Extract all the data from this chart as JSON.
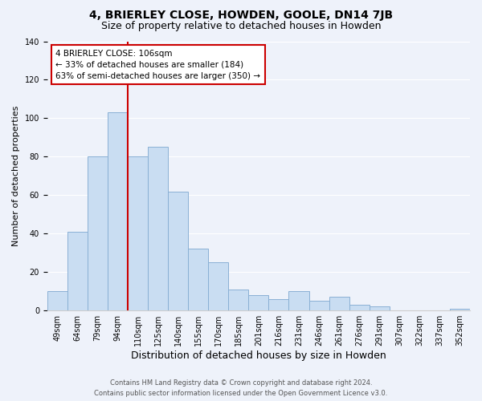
{
  "title": "4, BRIERLEY CLOSE, HOWDEN, GOOLE, DN14 7JB",
  "subtitle": "Size of property relative to detached houses in Howden",
  "xlabel": "Distribution of detached houses by size in Howden",
  "ylabel": "Number of detached properties",
  "bar_labels": [
    "49sqm",
    "64sqm",
    "79sqm",
    "94sqm",
    "110sqm",
    "125sqm",
    "140sqm",
    "155sqm",
    "170sqm",
    "185sqm",
    "201sqm",
    "216sqm",
    "231sqm",
    "246sqm",
    "261sqm",
    "276sqm",
    "291sqm",
    "307sqm",
    "322sqm",
    "337sqm",
    "352sqm"
  ],
  "bar_values": [
    10,
    41,
    80,
    103,
    80,
    85,
    62,
    32,
    25,
    11,
    8,
    6,
    10,
    5,
    7,
    3,
    2,
    0,
    0,
    0,
    1
  ],
  "bar_color": "#c9ddf2",
  "bar_edge_color": "#8ab0d4",
  "vline_color": "#cc0000",
  "annotation_title": "4 BRIERLEY CLOSE: 106sqm",
  "annotation_line1": "← 33% of detached houses are smaller (184)",
  "annotation_line2": "63% of semi-detached houses are larger (350) →",
  "annotation_box_color": "#ffffff",
  "annotation_box_edge": "#cc0000",
  "ylim": [
    0,
    140
  ],
  "yticks": [
    0,
    20,
    40,
    60,
    80,
    100,
    120,
    140
  ],
  "footnote1": "Contains HM Land Registry data © Crown copyright and database right 2024.",
  "footnote2": "Contains public sector information licensed under the Open Government Licence v3.0.",
  "background_color": "#eef2fa",
  "grid_color": "#ffffff",
  "title_fontsize": 10,
  "subtitle_fontsize": 9,
  "xlabel_fontsize": 9,
  "ylabel_fontsize": 8,
  "tick_fontsize": 7,
  "annotation_fontsize": 7.5,
  "footnote_fontsize": 6
}
